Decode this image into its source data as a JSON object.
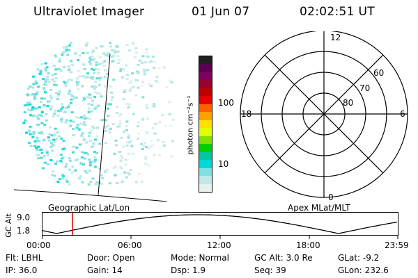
{
  "header": {
    "instrument": "Ultraviolet Imager",
    "date": "01 Jun 07",
    "time": "02:02:51 UT"
  },
  "geo_panel": {
    "caption": "Geographic Lat/Lon"
  },
  "colorbar": {
    "label": "photon cm⁻²s⁻¹",
    "ticks": [
      "100",
      "10"
    ],
    "colors": [
      "#202020",
      "#5a0050",
      "#800060",
      "#9a0030",
      "#c00000",
      "#e80000",
      "#ff6000",
      "#ffa000",
      "#ffe000",
      "#e0ff00",
      "#80e000",
      "#00d000",
      "#00c8a0",
      "#00d8d8",
      "#80e0e0",
      "#c0e8e8",
      "#e8f0f0"
    ]
  },
  "polar_panel": {
    "caption": "Apex MLat/MLT",
    "mlt_labels": {
      "top": "12",
      "bottom": "0",
      "left": "18",
      "right": "6"
    },
    "lat_labels": [
      "60",
      "70",
      "80"
    ]
  },
  "altitude_plot": {
    "ylabel": "GC Alt",
    "yticks": [
      "9.0",
      "1.8"
    ],
    "xticks": [
      "00:00",
      "06:00",
      "12:00",
      "18:00",
      "23:59"
    ],
    "marker_color": "#d00000"
  },
  "info": {
    "filter": "Flt: LBHL",
    "ip": "IP: 36.0",
    "door": "Door: Open",
    "gain": "Gain: 14",
    "mode": "Mode: Normal",
    "dsp": "Dsp:    1.9",
    "gc_alt": "GC Alt: 3.0 Re",
    "seq": "Seq: 39",
    "glat": "GLat:  -9.2",
    "glon": "GLon: 232.6"
  }
}
